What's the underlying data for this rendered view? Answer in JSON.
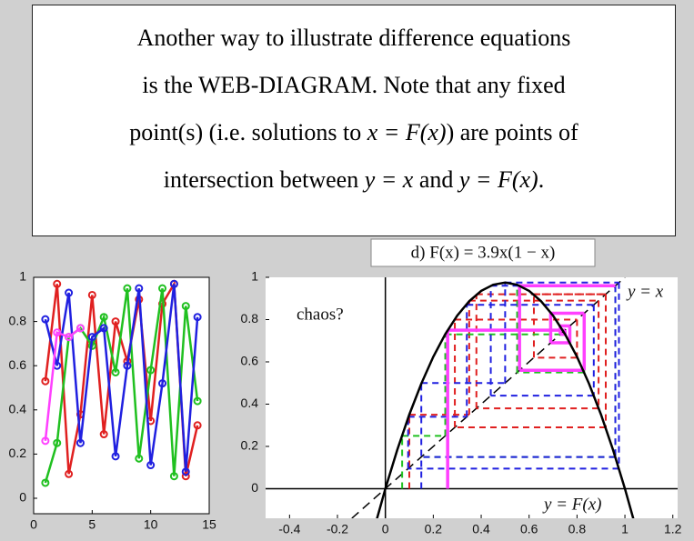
{
  "text_box": {
    "lines": [
      [
        "Another way to illustrate difference equations"
      ],
      [
        "is the WEB-DIAGRAM. Note that any fixed"
      ],
      [
        "point(s) (i.e. solutions to ",
        "x = F(x)",
        ") are points of"
      ],
      [
        "intersection between ",
        "y = x",
        " and ",
        "y = F(x)",
        "."
      ]
    ]
  },
  "chart_data": [
    {
      "type": "line",
      "x": [
        1,
        2,
        3,
        4,
        5,
        6,
        7,
        8,
        9,
        10,
        11,
        12,
        13,
        14
      ],
      "xlim": [
        0,
        15
      ],
      "xticks": [
        0,
        5,
        10,
        15
      ],
      "ylim": [
        -0.07,
        1
      ],
      "yticks": [
        0,
        0.2,
        0.4,
        0.6,
        0.8,
        1
      ],
      "series": [
        {
          "color": "#e02020",
          "values": [
            0.53,
            0.97,
            0.11,
            0.38,
            0.92,
            0.29,
            0.8,
            0.62,
            0.9,
            0.35,
            0.88,
            0.97,
            0.1,
            0.33
          ]
        },
        {
          "color": "#20c020",
          "values": [
            0.07,
            0.25,
            0.73,
            0.77,
            0.69,
            0.82,
            0.57,
            0.95,
            0.18,
            0.58,
            0.95,
            0.1,
            0.87,
            0.44
          ]
        },
        {
          "color": "#2020e0",
          "values": [
            0.81,
            0.6,
            0.93,
            0.25,
            0.73,
            0.77,
            0.19,
            0.6,
            0.95,
            0.15,
            0.52,
            0.97,
            0.12,
            0.82
          ]
        },
        {
          "color": "#ff40ff",
          "values": [
            0.26,
            0.75,
            0.73,
            0.77,
            null,
            null,
            null,
            null,
            null,
            null,
            null,
            null,
            null,
            null
          ]
        }
      ]
    },
    {
      "type": "cobweb",
      "title": "d) F(x) = 3.9x(1 − x)",
      "xlim": [
        -0.5,
        1.22
      ],
      "xticks": [
        -0.4,
        -0.2,
        0,
        0.2,
        0.4,
        0.6,
        0.8,
        1,
        1.2
      ],
      "ylim": [
        -0.14,
        1
      ],
      "yticks": [
        0,
        0.2,
        0.4,
        0.6,
        0.8,
        1
      ],
      "curve": {
        "color": "#000000",
        "x": [
          -0.04,
          0,
          0.05,
          0.1,
          0.15,
          0.2,
          0.25,
          0.3,
          0.35,
          0.4,
          0.45,
          0.5,
          0.55,
          0.6,
          0.65,
          0.7,
          0.75,
          0.8,
          0.85,
          0.9,
          0.95,
          1,
          1.04
        ],
        "y": [
          -0.162,
          0,
          0.185,
          0.351,
          0.497,
          0.624,
          0.731,
          0.819,
          0.887,
          0.936,
          0.965,
          0.975,
          0.965,
          0.936,
          0.887,
          0.819,
          0.731,
          0.624,
          0.497,
          0.351,
          0.185,
          0,
          -0.162
        ]
      },
      "series": [
        {
          "color": "#e02020",
          "dashed": true,
          "values": [
            0.1,
            0.35,
            0.89,
            0.38,
            0.92,
            0.29,
            0.8,
            0.62,
            0.92
          ]
        },
        {
          "color": "#20c020",
          "dashed": true,
          "values": [
            0.07,
            0.25,
            0.73,
            0.77,
            0.69,
            0.83,
            0.55,
            0.96,
            0.15
          ]
        },
        {
          "color": "#2020e0",
          "dashed": true,
          "values": [
            0.15,
            0.5,
            0.975,
            0.095,
            0.34,
            0.87,
            0.44,
            0.96,
            0.15
          ]
        },
        {
          "color": "#ff40ff",
          "dashed": false,
          "values": [
            0.26,
            0.75,
            0.73,
            0.77,
            0.69,
            0.83,
            0.56,
            0.96
          ]
        }
      ],
      "annotations": [
        "chaos?",
        "y = x",
        "y = F(x)"
      ]
    }
  ]
}
